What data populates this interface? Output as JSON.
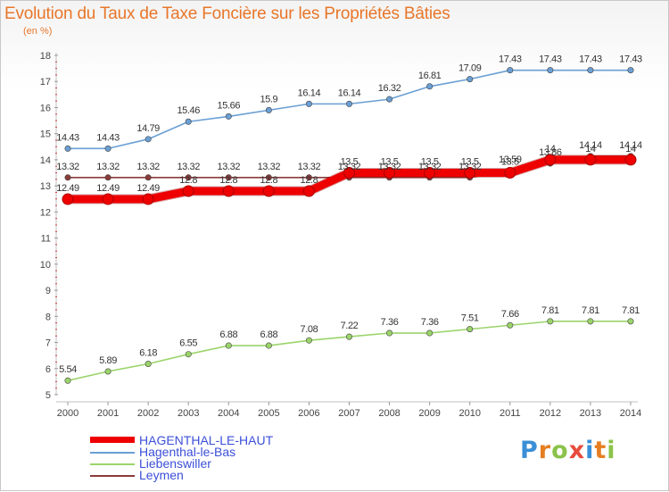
{
  "title": "Evolution du Taux de Taxe Foncière sur les Propriétés Bâties",
  "unit": "(en %)",
  "logo": {
    "letters": [
      "P",
      "r",
      "o",
      "x",
      "i",
      "t",
      "i"
    ],
    "colors": [
      "#3a8fd6",
      "#e67e22",
      "#8bc34a",
      "#e74c3c",
      "#3a8fd6",
      "#e67e22",
      "#8bc34a"
    ]
  },
  "chart_data": {
    "type": "line",
    "title": "Evolution du Taux de Taxe Foncière sur les Propriétés Bâties",
    "ylabel": "(en %)",
    "xlabel": "",
    "x": [
      "2000",
      "2001",
      "2002",
      "2003",
      "2004",
      "2005",
      "2006",
      "2007",
      "2008",
      "2009",
      "2010",
      "2011",
      "2012",
      "2013",
      "2014"
    ],
    "ylim": [
      5,
      18
    ],
    "yticks": [
      "5",
      "6",
      "7",
      "8",
      "9",
      "10",
      "11",
      "12",
      "13",
      "14",
      "15",
      "16",
      "17",
      "18"
    ],
    "grid": false,
    "legend_position": "bottom-left",
    "series": [
      {
        "name": "Leymen",
        "color": "#8b3a3a",
        "values": [
          13.32,
          13.32,
          13.32,
          13.32,
          13.32,
          13.32,
          13.32,
          13.32,
          13.32,
          13.32,
          13.32,
          13.59,
          13.86,
          14.14,
          14.14
        ],
        "labels": [
          "13.32",
          "13.32",
          "13.32",
          "13.32",
          "13.32",
          "13.32",
          "13.32",
          "13.32",
          "13.32",
          "13.32",
          "13.32",
          "13.59",
          "13.86",
          "14.14",
          "14.14"
        ]
      },
      {
        "name": "Liebenswiller",
        "color": "#9bd46a",
        "values": [
          5.54,
          5.89,
          6.18,
          6.55,
          6.88,
          6.88,
          7.08,
          7.22,
          7.36,
          7.36,
          7.51,
          7.66,
          7.81,
          7.81,
          7.81
        ],
        "labels": [
          "5.54",
          "5.89",
          "6.18",
          "6.55",
          "6.88",
          "6.88",
          "7.08",
          "7.22",
          "7.36",
          "7.36",
          "7.51",
          "7.66",
          "7.81",
          "7.81",
          "7.81"
        ]
      },
      {
        "name": "Hagenthal-le-Bas",
        "color": "#6a9fd4",
        "values": [
          14.43,
          14.43,
          14.79,
          15.46,
          15.66,
          15.9,
          16.14,
          16.14,
          16.32,
          16.81,
          17.09,
          17.43,
          17.43,
          17.43,
          17.43
        ],
        "labels": [
          "14.43",
          "14.43",
          "14.79",
          "15.46",
          "15.66",
          "15.9",
          "16.14",
          "16.14",
          "16.32",
          "16.81",
          "17.09",
          "17.43",
          "17.43",
          "17.43",
          "17.43"
        ]
      },
      {
        "name": "HAGENTHAL-LE-HAUT",
        "color": "#ee0000",
        "values": [
          12.49,
          12.49,
          12.49,
          12.8,
          12.8,
          12.8,
          12.8,
          13.5,
          13.5,
          13.5,
          13.5,
          13.5,
          14,
          14,
          14
        ],
        "labels": [
          "12.49",
          "12.49",
          "12.49",
          "12.8",
          "12.8",
          "12.8",
          "12.8",
          "13.5",
          "13.5",
          "13.5",
          "13.5",
          "13.5",
          "14",
          "14",
          "14"
        ]
      }
    ]
  },
  "legend": [
    {
      "name": "HAGENTHAL-LE-HAUT",
      "color": "#ee0000",
      "swatch_style": "thick"
    },
    {
      "name": "Hagenthal-le-Bas",
      "color": "#6a9fd4",
      "swatch_style": "thin"
    },
    {
      "name": "Liebenswiller",
      "color": "#9bd46a",
      "swatch_style": "thin"
    },
    {
      "name": "Leymen",
      "color": "#8b3a3a",
      "swatch_style": "thin"
    }
  ]
}
